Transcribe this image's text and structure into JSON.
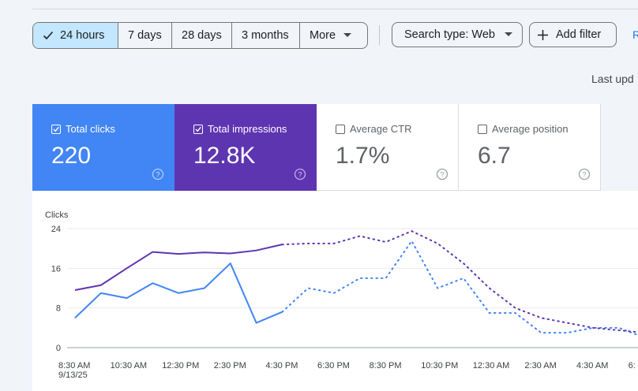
{
  "toolbar": {
    "ranges": [
      "24 hours",
      "7 days",
      "28 days",
      "3 months"
    ],
    "more_label": "More",
    "search_type_label": "Search type: Web",
    "add_filter_label": "Add filter",
    "reset_label": "R",
    "last_updated": "Last upd"
  },
  "metrics": [
    {
      "label": "Total clicks",
      "value": "220",
      "checked": true,
      "color": "#4285f4"
    },
    {
      "label": "Total impressions",
      "value": "12.8K",
      "checked": true,
      "color": "#5e35b1"
    },
    {
      "label": "Average CTR",
      "value": "1.7%",
      "checked": false
    },
    {
      "label": "Average position",
      "value": "6.7",
      "checked": false
    }
  ],
  "chart_data": {
    "type": "line",
    "ylabel": "Clicks",
    "yticks": [
      "24",
      "16",
      "8",
      "0"
    ],
    "ylim": [
      0,
      24
    ],
    "xticks": [
      "8:30 AM",
      "10:30 AM",
      "12:30 PM",
      "2:30 PM",
      "4:30 PM",
      "6:30 PM",
      "8:30 PM",
      "10:30 PM",
      "12:30 AM",
      "2:30 AM",
      "4:30 AM",
      "6:"
    ],
    "xdate": "9/13/25",
    "series": [
      {
        "name": "Total clicks",
        "color": "#4285f4",
        "solid": [
          [
            0,
            6
          ],
          [
            1,
            11
          ],
          [
            2,
            10
          ],
          [
            3,
            13
          ],
          [
            4,
            11
          ],
          [
            5,
            12
          ],
          [
            6,
            17
          ],
          [
            7,
            5
          ],
          [
            8,
            7.2
          ]
        ],
        "dotted": [
          [
            8,
            7.2
          ],
          [
            9,
            12
          ],
          [
            10,
            11
          ],
          [
            11,
            14
          ],
          [
            12,
            14
          ],
          [
            13,
            21.5
          ],
          [
            14,
            12
          ],
          [
            15,
            14
          ],
          [
            16,
            7
          ],
          [
            17,
            7
          ],
          [
            18,
            3
          ],
          [
            19,
            3
          ],
          [
            20,
            4
          ],
          [
            21,
            4
          ],
          [
            22,
            2
          ],
          [
            22.5,
            3
          ]
        ]
      },
      {
        "name": "Total impressions",
        "color": "#5e35b1",
        "solid": [
          [
            0,
            11.6
          ],
          [
            1,
            12.6
          ],
          [
            2,
            16
          ],
          [
            3,
            19.3
          ],
          [
            4,
            18.9
          ],
          [
            5,
            19.2
          ],
          [
            6,
            19
          ],
          [
            7,
            19.6
          ],
          [
            8,
            20.8
          ]
        ],
        "dotted": [
          [
            8,
            20.8
          ],
          [
            9,
            21
          ],
          [
            10,
            21
          ],
          [
            11,
            22.5
          ],
          [
            12,
            21.3
          ],
          [
            13,
            23.5
          ],
          [
            14,
            21
          ],
          [
            15,
            17
          ],
          [
            16,
            12
          ],
          [
            17,
            8
          ],
          [
            18,
            6
          ],
          [
            19,
            5
          ],
          [
            20,
            4
          ],
          [
            21,
            3.5
          ],
          [
            22,
            3
          ],
          [
            22.5,
            2.5
          ]
        ]
      }
    ]
  }
}
